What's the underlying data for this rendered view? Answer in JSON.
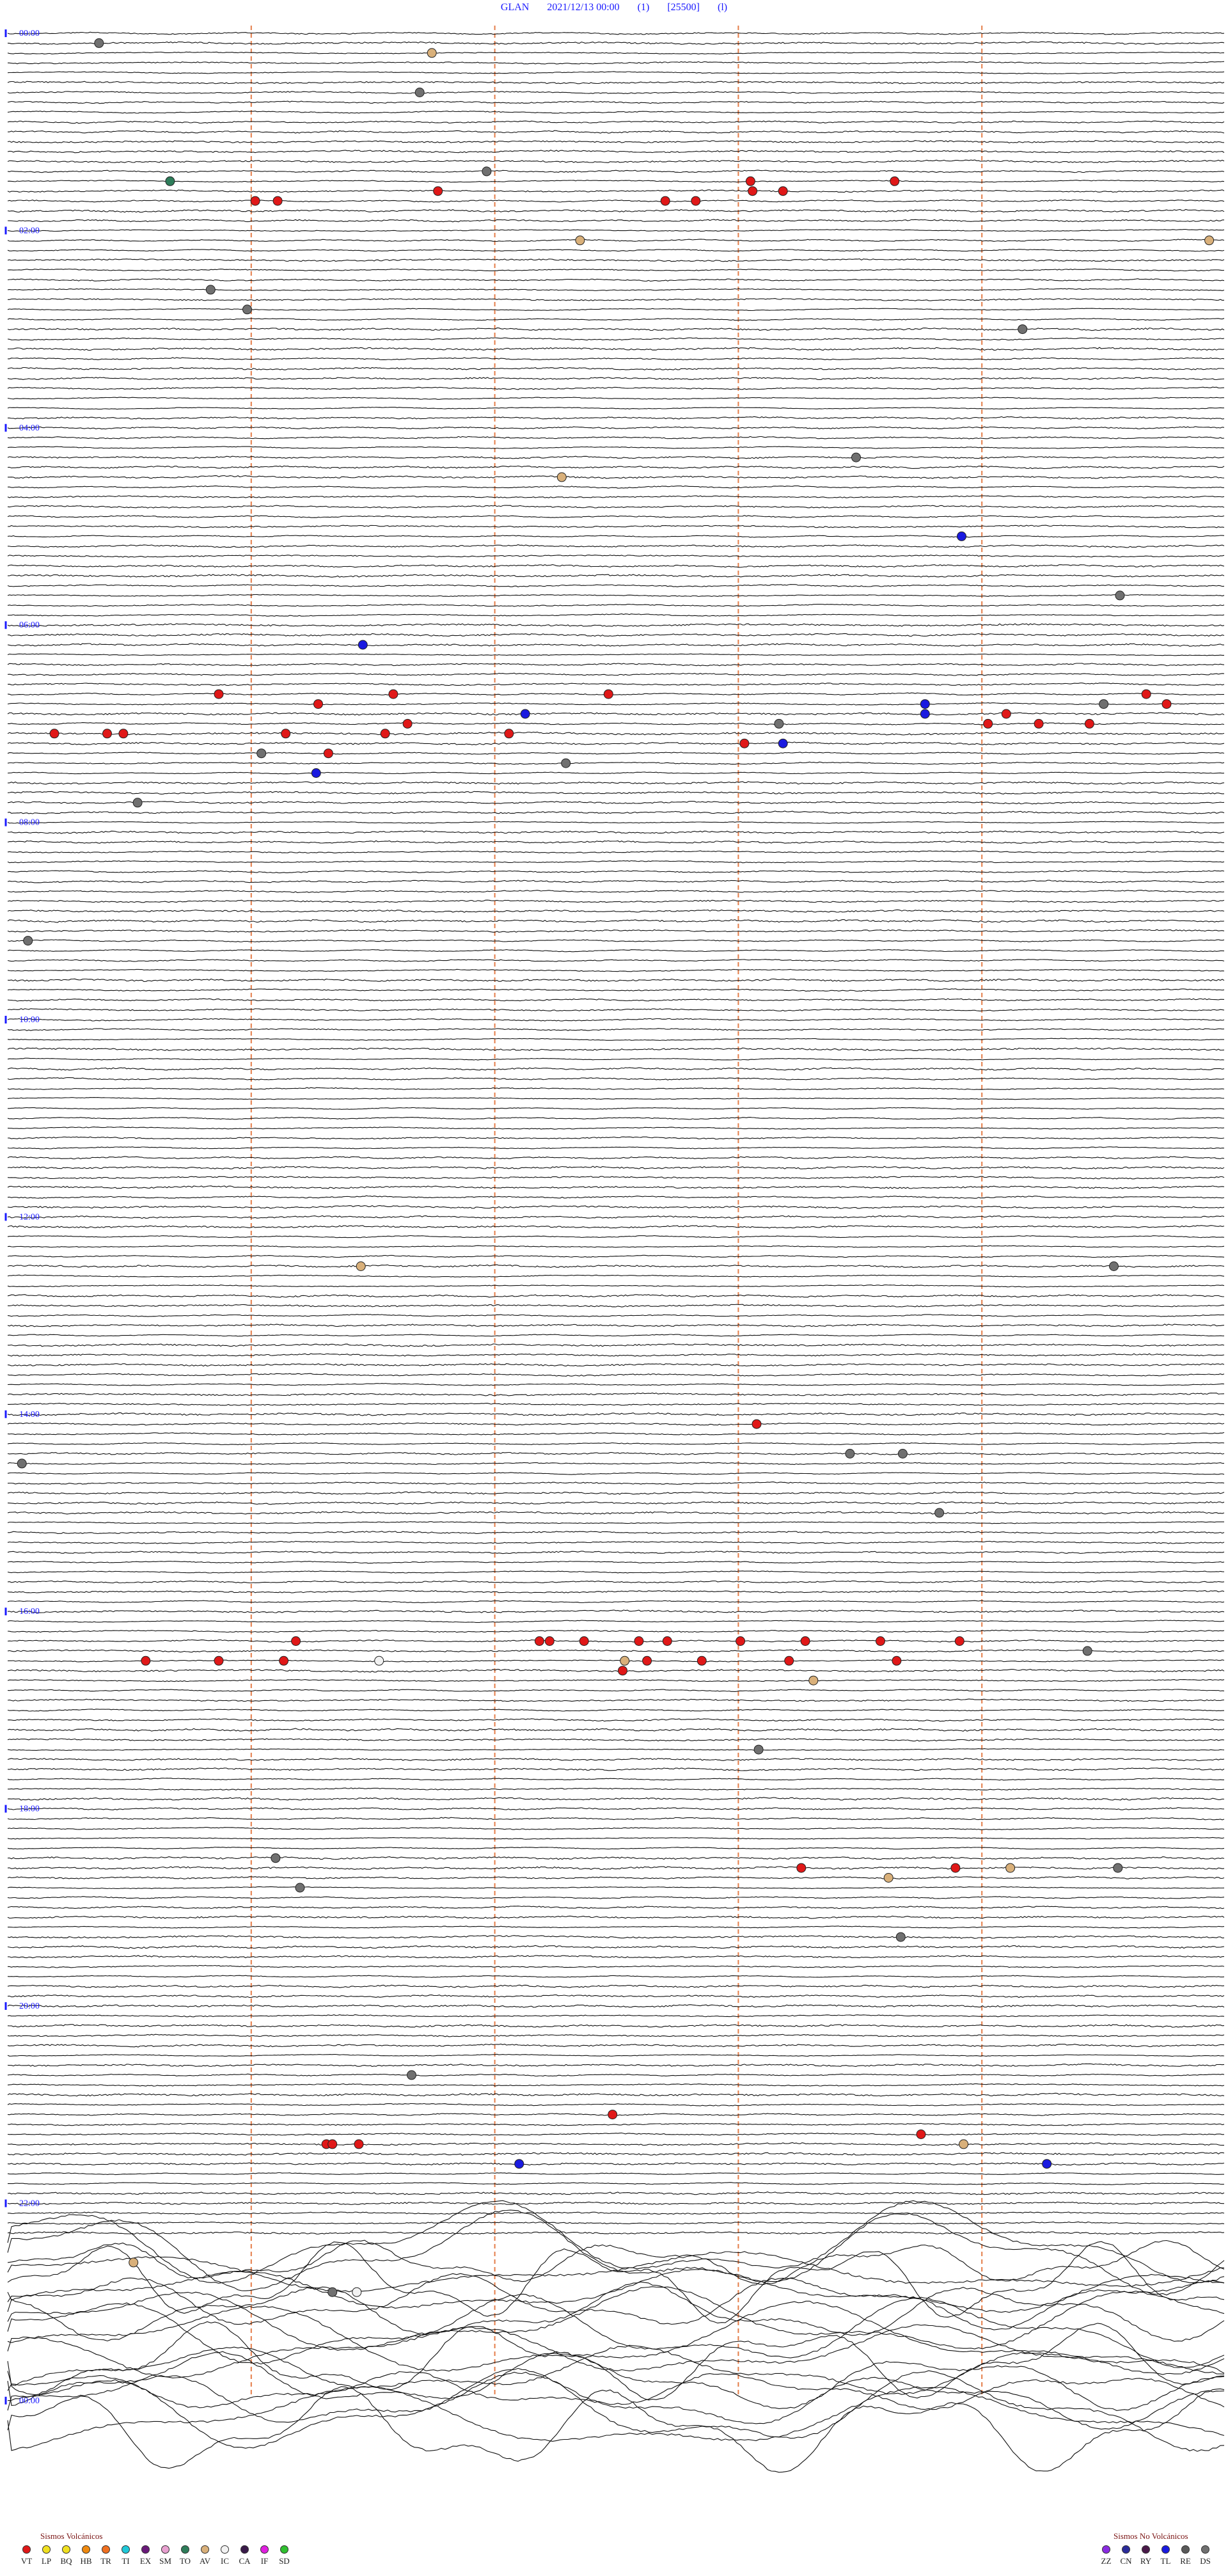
{
  "header": {
    "station": "GLAN",
    "datetime": "2021/12/13 00:00",
    "channel": "(1)",
    "scale": "[25500]",
    "mode": "(l)"
  },
  "chart_data": {
    "type": "helicorder",
    "rows": 244,
    "minutes_per_row": 6,
    "hour_labels": [
      "00:00",
      "02:00",
      "04:00",
      "06:00",
      "08:00",
      "10:00",
      "12:00",
      "14:00",
      "16:00",
      "18:00",
      "20:00",
      "22:00",
      "00:00"
    ],
    "hour_label_rows": [
      0,
      20,
      40,
      60,
      80,
      100,
      120,
      140,
      160,
      180,
      200,
      220,
      240
    ],
    "minute_marks": [
      1,
      2,
      3,
      4
    ],
    "minute_mark_color": "#e0672a",
    "noise_rows": [
      224,
      244
    ],
    "events": [
      {
        "row": 1,
        "min": 0.45,
        "type": "DS"
      },
      {
        "row": 2,
        "min": 2.09,
        "type": "AV"
      },
      {
        "row": 6,
        "min": 2.03,
        "type": "DS"
      },
      {
        "row": 14,
        "min": 2.36,
        "type": "DS"
      },
      {
        "row": 15,
        "min": 0.8,
        "type": "TO"
      },
      {
        "row": 15,
        "min": 3.66,
        "type": "VT"
      },
      {
        "row": 15,
        "min": 4.37,
        "type": "VT"
      },
      {
        "row": 16,
        "min": 2.12,
        "type": "VT"
      },
      {
        "row": 16,
        "min": 3.67,
        "type": "VT"
      },
      {
        "row": 16,
        "min": 3.82,
        "type": "VT"
      },
      {
        "row": 17,
        "min": 1.22,
        "type": "VT"
      },
      {
        "row": 17,
        "min": 1.33,
        "type": "VT"
      },
      {
        "row": 17,
        "min": 3.24,
        "type": "VT"
      },
      {
        "row": 17,
        "min": 3.39,
        "type": "VT"
      },
      {
        "row": 21,
        "min": 2.82,
        "type": "AV"
      },
      {
        "row": 21,
        "min": 5.92,
        "type": "AV"
      },
      {
        "row": 26,
        "min": 1.0,
        "type": "DS"
      },
      {
        "row": 28,
        "min": 1.18,
        "type": "DS"
      },
      {
        "row": 30,
        "min": 5.0,
        "type": "DS"
      },
      {
        "row": 43,
        "min": 4.18,
        "type": "DS"
      },
      {
        "row": 45,
        "min": 2.73,
        "type": "AV"
      },
      {
        "row": 51,
        "min": 4.7,
        "type": "TL"
      },
      {
        "row": 57,
        "min": 5.48,
        "type": "DS"
      },
      {
        "row": 62,
        "min": 1.75,
        "type": "TL"
      },
      {
        "row": 67,
        "min": 1.04,
        "type": "VT"
      },
      {
        "row": 67,
        "min": 1.9,
        "type": "VT"
      },
      {
        "row": 67,
        "min": 2.96,
        "type": "VT"
      },
      {
        "row": 67,
        "min": 5.61,
        "type": "VT"
      },
      {
        "row": 68,
        "min": 1.53,
        "type": "VT"
      },
      {
        "row": 68,
        "min": 4.52,
        "type": "TL"
      },
      {
        "row": 68,
        "min": 5.4,
        "type": "DS"
      },
      {
        "row": 68,
        "min": 5.71,
        "type": "VT"
      },
      {
        "row": 69,
        "min": 2.55,
        "type": "TL"
      },
      {
        "row": 69,
        "min": 4.52,
        "type": "TL"
      },
      {
        "row": 69,
        "min": 4.92,
        "type": "VT"
      },
      {
        "row": 70,
        "min": 1.97,
        "type": "VT"
      },
      {
        "row": 70,
        "min": 3.8,
        "type": "DS"
      },
      {
        "row": 70,
        "min": 4.83,
        "type": "VT"
      },
      {
        "row": 70,
        "min": 5.08,
        "type": "VT"
      },
      {
        "row": 70,
        "min": 5.33,
        "type": "VT"
      },
      {
        "row": 71,
        "min": 0.23,
        "type": "VT"
      },
      {
        "row": 71,
        "min": 0.49,
        "type": "VT"
      },
      {
        "row": 71,
        "min": 0.57,
        "type": "VT"
      },
      {
        "row": 71,
        "min": 1.37,
        "type": "VT"
      },
      {
        "row": 71,
        "min": 1.86,
        "type": "VT"
      },
      {
        "row": 71,
        "min": 2.47,
        "type": "VT"
      },
      {
        "row": 72,
        "min": 3.63,
        "type": "VT"
      },
      {
        "row": 72,
        "min": 3.82,
        "type": "TL"
      },
      {
        "row": 73,
        "min": 1.25,
        "type": "DS"
      },
      {
        "row": 73,
        "min": 1.58,
        "type": "VT"
      },
      {
        "row": 74,
        "min": 2.75,
        "type": "DS"
      },
      {
        "row": 75,
        "min": 1.52,
        "type": "TL"
      },
      {
        "row": 78,
        "min": 0.64,
        "type": "DS"
      },
      {
        "row": 92,
        "min": 0.1,
        "type": "DS"
      },
      {
        "row": 125,
        "min": 1.74,
        "type": "AV"
      },
      {
        "row": 125,
        "min": 5.45,
        "type": "DS"
      },
      {
        "row": 141,
        "min": 3.69,
        "type": "VT"
      },
      {
        "row": 144,
        "min": 4.41,
        "type": "DS"
      },
      {
        "row": 144,
        "min": 4.15,
        "type": "DS"
      },
      {
        "row": 145,
        "min": 0.07,
        "type": "DS"
      },
      {
        "row": 150,
        "min": 4.59,
        "type": "DS"
      },
      {
        "row": 163,
        "min": 1.42,
        "type": "VT"
      },
      {
        "row": 163,
        "min": 2.62,
        "type": "VT"
      },
      {
        "row": 163,
        "min": 2.67,
        "type": "VT"
      },
      {
        "row": 163,
        "min": 2.84,
        "type": "VT"
      },
      {
        "row": 163,
        "min": 3.11,
        "type": "VT"
      },
      {
        "row": 163,
        "min": 3.25,
        "type": "VT"
      },
      {
        "row": 163,
        "min": 3.61,
        "type": "VT"
      },
      {
        "row": 163,
        "min": 3.93,
        "type": "VT"
      },
      {
        "row": 163,
        "min": 4.3,
        "type": "VT"
      },
      {
        "row": 163,
        "min": 4.69,
        "type": "VT"
      },
      {
        "row": 164,
        "min": 5.32,
        "type": "DS"
      },
      {
        "row": 165,
        "min": 0.68,
        "type": "VT"
      },
      {
        "row": 165,
        "min": 1.04,
        "type": "VT"
      },
      {
        "row": 165,
        "min": 1.36,
        "type": "VT"
      },
      {
        "row": 165,
        "min": 1.83,
        "type": "IC"
      },
      {
        "row": 165,
        "min": 3.04,
        "type": "AV"
      },
      {
        "row": 165,
        "min": 3.15,
        "type": "VT"
      },
      {
        "row": 165,
        "min": 3.42,
        "type": "VT"
      },
      {
        "row": 165,
        "min": 3.85,
        "type": "VT"
      },
      {
        "row": 165,
        "min": 4.38,
        "type": "VT"
      },
      {
        "row": 166,
        "min": 3.03,
        "type": "VT"
      },
      {
        "row": 167,
        "min": 3.97,
        "type": "AV"
      },
      {
        "row": 174,
        "min": 3.7,
        "type": "DS"
      },
      {
        "row": 185,
        "min": 1.32,
        "type": "DS"
      },
      {
        "row": 186,
        "min": 3.91,
        "type": "VT"
      },
      {
        "row": 186,
        "min": 4.67,
        "type": "VT"
      },
      {
        "row": 186,
        "min": 4.94,
        "type": "AV"
      },
      {
        "row": 186,
        "min": 5.47,
        "type": "DS"
      },
      {
        "row": 187,
        "min": 4.34,
        "type": "AV"
      },
      {
        "row": 188,
        "min": 1.44,
        "type": "DS"
      },
      {
        "row": 193,
        "min": 4.4,
        "type": "DS"
      },
      {
        "row": 207,
        "min": 1.99,
        "type": "DS"
      },
      {
        "row": 211,
        "min": 2.98,
        "type": "VT"
      },
      {
        "row": 213,
        "min": 4.5,
        "type": "VT"
      },
      {
        "row": 214,
        "min": 1.57,
        "type": "VT"
      },
      {
        "row": 214,
        "min": 1.6,
        "type": "VT"
      },
      {
        "row": 214,
        "min": 1.73,
        "type": "VT"
      },
      {
        "row": 214,
        "min": 4.71,
        "type": "AV"
      },
      {
        "row": 216,
        "min": 2.52,
        "type": "TL"
      },
      {
        "row": 216,
        "min": 5.12,
        "type": "TL"
      },
      {
        "row": 226,
        "min": 0.62,
        "type": "AV"
      },
      {
        "row": 229,
        "min": 1.6,
        "type": "DS"
      },
      {
        "row": 229,
        "min": 1.72,
        "type": "IC"
      }
    ]
  },
  "legend_left": {
    "title": "Sismos Volcánicos",
    "items": [
      {
        "code": "VT",
        "color": "#e01818"
      },
      {
        "code": "LP",
        "color": "#f0e020"
      },
      {
        "code": "BQ",
        "color": "#f0e020"
      },
      {
        "code": "HB",
        "color": "#f08a10"
      },
      {
        "code": "TR",
        "color": "#f07020"
      },
      {
        "code": "TI",
        "color": "#20c8d8"
      },
      {
        "code": "EX",
        "color": "#6a1a7a"
      },
      {
        "code": "SM",
        "color": "#e8a0d0"
      },
      {
        "code": "TO",
        "color": "#2e7d5a"
      },
      {
        "code": "AV",
        "color": "#d9b07a"
      },
      {
        "code": "IC",
        "color": "#f2f2f2"
      },
      {
        "code": "CA",
        "color": "#3a1a4a"
      },
      {
        "code": "IF",
        "color": "#e020e0"
      },
      {
        "code": "SD",
        "color": "#30c030"
      }
    ]
  },
  "legend_right": {
    "title": "Sismos No Volcánicos",
    "items": [
      {
        "code": "ZZ",
        "color": "#8a2be2"
      },
      {
        "code": "CN",
        "color": "#2b2b9a"
      },
      {
        "code": "RY",
        "color": "#4a1a4a"
      },
      {
        "code": "TL",
        "color": "#1a1ae0"
      },
      {
        "code": "RE",
        "color": "#5a5a5a"
      },
      {
        "code": "DS",
        "color": "#707070"
      }
    ]
  }
}
